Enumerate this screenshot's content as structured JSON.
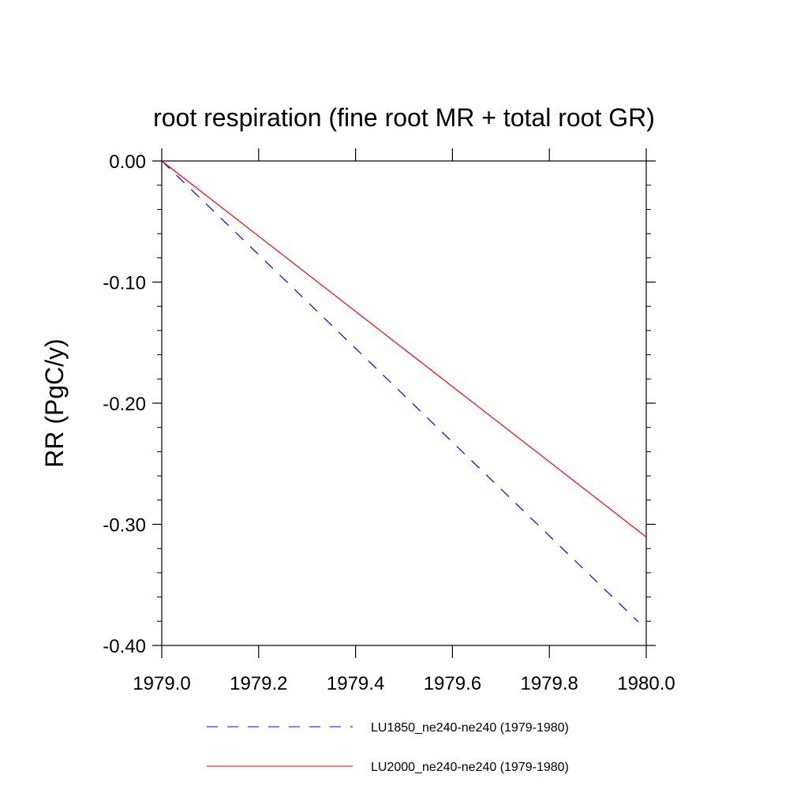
{
  "chart_data": {
    "type": "line",
    "title": "root respiration (fine root MR + total root GR)",
    "xlabel": "",
    "ylabel": "RR  (PgC/y)",
    "xlim": [
      1979.0,
      1980.0
    ],
    "ylim": [
      -0.4,
      0.0
    ],
    "x_ticks": [
      1979.0,
      1979.2,
      1979.4,
      1979.6,
      1979.8,
      1980.0
    ],
    "x_tick_labels": [
      "1979.0",
      "1979.2",
      "1979.4",
      "1979.6",
      "1979.8",
      "1980.0"
    ],
    "y_ticks": [
      0.0,
      -0.1,
      -0.2,
      -0.3,
      -0.4
    ],
    "y_tick_labels": [
      "0.00",
      "-0.10",
      "-0.20",
      "-0.30",
      "-0.40"
    ],
    "grid": false,
    "legend_position": "bottom",
    "series": [
      {
        "name": "LU1850_ne240-ne240 (1979-1980)",
        "color": "#0000ff",
        "dash": "dashed",
        "x": [
          1979.0,
          1979.9836
        ],
        "y": [
          0.0,
          -0.3805
        ]
      },
      {
        "name": "LU2000_ne240-ne240 (1979-1980)",
        "color": "#ff0000",
        "dash": "solid",
        "x": [
          1979.0,
          1980.0
        ],
        "y": [
          0.0,
          -0.3105
        ]
      }
    ]
  }
}
